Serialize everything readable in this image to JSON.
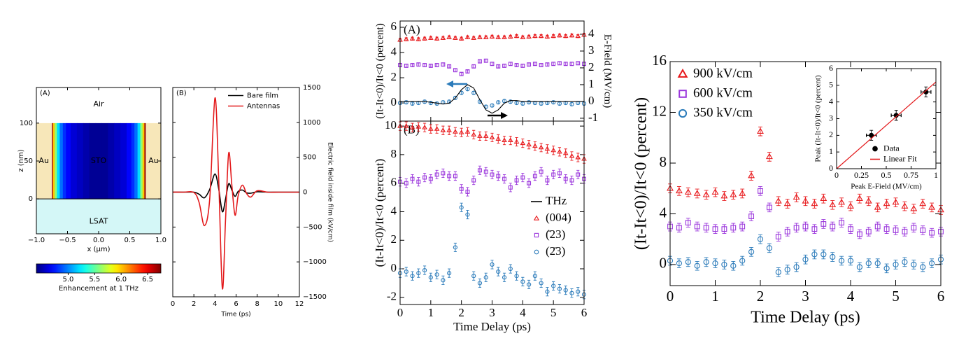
{
  "chart_data": [
    {
      "type": "heatmap",
      "panel_label": "(A)",
      "xlabel": "x (μm)",
      "ylabel": "z (nm)",
      "xlim": [
        -1,
        1
      ],
      "ylim": [
        -46,
        147
      ],
      "xticks": [
        {
          "value": -1,
          "label": "−1.0"
        },
        {
          "value": -0.5,
          "label": "−0.5"
        },
        {
          "value": 0,
          "label": "0.0"
        },
        {
          "value": 0.5,
          "label": "0.5"
        },
        {
          "value": 1,
          "label": "1.0"
        }
      ],
      "yticks": [
        0,
        50,
        100
      ],
      "labels": [
        "Air",
        "Au",
        "STO",
        "Au",
        "LSAT"
      ],
      "film_z": [
        0,
        100
      ],
      "x": [
        -0.75,
        -0.72,
        -0.69,
        -0.65,
        -0.6,
        -0.55,
        -0.5,
        -0.4,
        -0.3,
        -0.2,
        -0.1,
        0,
        0.1,
        0.2,
        0.3,
        0.4,
        0.5,
        0.55,
        0.6,
        0.65,
        0.69,
        0.72,
        0.75
      ],
      "values": [
        6.7,
        6.0,
        5.6,
        5.2,
        4.95,
        4.8,
        4.7,
        4.6,
        4.55,
        4.5,
        4.45,
        4.45,
        4.45,
        4.5,
        4.55,
        4.6,
        4.7,
        4.8,
        4.95,
        5.2,
        5.6,
        6.0,
        6.7
      ],
      "colormap": "jet",
      "clim": [
        4.4,
        6.75
      ],
      "colorbar_ticks": [
        {
          "value": 5,
          "label": "5.0"
        },
        {
          "value": 5.5,
          "label": "5.5"
        },
        {
          "value": 6,
          "label": "6.0"
        },
        {
          "value": 6.5,
          "label": "6.5"
        }
      ],
      "colorbar_label": "Enhancement at 1 THz"
    },
    {
      "type": "line",
      "panel_label": "(B)",
      "xlabel": "Time (ps)",
      "ylabel": "Electric field inside film (kV/cm)",
      "y_axis_side": "right",
      "x": [
        0,
        1,
        2,
        2.5,
        3,
        3.5,
        4,
        4.35,
        4.7,
        5,
        5.3,
        5.6,
        5.9,
        6.2,
        6.6,
        7,
        7.4,
        8,
        9,
        10,
        12
      ],
      "xlim": [
        0,
        12
      ],
      "xticks": [
        0,
        2,
        4,
        6,
        8,
        10,
        12
      ],
      "ylim": [
        -1500,
        1500
      ],
      "yticks": [
        {
          "value": -1500,
          "label": "−1500"
        },
        {
          "value": -1000,
          "label": "−1000"
        },
        {
          "value": -500,
          "label": "−500"
        },
        0,
        500,
        1000,
        1500
      ],
      "legend": "upper right",
      "series": [
        {
          "name": "Bare film",
          "color": "#000000",
          "style": "line",
          "values": [
            0,
            0,
            0,
            -30,
            -80,
            40,
            260,
            50,
            -280,
            -100,
            120,
            30,
            -60,
            10,
            30,
            -10,
            -15,
            5,
            0,
            0,
            0
          ]
        },
        {
          "name": "Antennas",
          "color": "#e31a1c",
          "style": "line",
          "values": [
            0,
            0,
            -5,
            -150,
            -480,
            -100,
            1350,
            200,
            -1380,
            -400,
            560,
            100,
            -330,
            -50,
            100,
            -20,
            -70,
            20,
            0,
            0,
            0
          ]
        }
      ]
    },
    {
      "type": "line",
      "panel_label": "(A)",
      "ylabel": "(It-It<0)/It<0 (percent)",
      "y2label": "E-Field (MV/cm)",
      "x": [
        0,
        0.2,
        0.4,
        0.6,
        0.8,
        1,
        1.2,
        1.4,
        1.6,
        1.8,
        2,
        2.2,
        2.4,
        2.6,
        2.8,
        3,
        3.2,
        3.4,
        3.6,
        3.8,
        4,
        4.2,
        4.4,
        4.6,
        4.8,
        5,
        5.2,
        5.4,
        5.6,
        5.8,
        6
      ],
      "xlim": [
        0,
        6
      ],
      "xticks": [
        0,
        1,
        2,
        3,
        4,
        5,
        6
      ],
      "x_tick_labels": false,
      "ylim": [
        -1.44,
        6.5
      ],
      "yticks": [
        0,
        2,
        4,
        6
      ],
      "y2lim": [
        -1.17,
        4.79
      ],
      "y2ticks": [
        -1,
        0,
        1,
        2,
        3,
        4
      ],
      "series": [
        {
          "color": "#e8191c",
          "style": "markers",
          "marker": "triangle",
          "error": 0.12,
          "values": [
            5.0,
            5.05,
            5.1,
            5.05,
            5.1,
            5.15,
            5.1,
            5.15,
            5.2,
            5.15,
            5.1,
            5.2,
            5.15,
            5.2,
            5.2,
            5.25,
            5.2,
            5.2,
            5.25,
            5.3,
            5.2,
            5.25,
            5.3,
            5.3,
            5.25,
            5.3,
            5.35,
            5.3,
            5.35,
            5.3,
            5.4
          ]
        },
        {
          "color": "#9a35dc",
          "style": "markers",
          "marker": "square",
          "error": 0.12,
          "values": [
            3.0,
            2.95,
            3.0,
            3.05,
            3.0,
            2.95,
            3.0,
            3.05,
            2.9,
            2.6,
            2.3,
            2.5,
            2.9,
            3.3,
            3.35,
            3.1,
            2.9,
            2.95,
            3.1,
            3.0,
            2.95,
            3.05,
            3.1,
            3.0,
            3.05,
            3.1,
            3.15,
            3.1,
            3.1,
            3.15,
            3.1
          ]
        },
        {
          "color": "#2b7bba",
          "style": "markers",
          "marker": "circle",
          "error": 0.12,
          "values": [
            0,
            0.05,
            -0.05,
            0,
            0.1,
            0,
            -0.05,
            0.05,
            0.1,
            0.4,
            0.8,
            1.1,
            0.8,
            0.1,
            -0.3,
            -0.2,
            0.05,
            0.15,
            0.1,
            0,
            -0.05,
            0.05,
            0,
            -0.05,
            0,
            0.05,
            -0.05,
            0,
            -0.1,
            0,
            -0.05
          ]
        },
        {
          "name": "THz",
          "color": "#000000",
          "style": "line",
          "axis": "y2",
          "values": [
            0,
            0,
            0,
            0,
            0,
            -0.05,
            -0.1,
            -0.15,
            -0.1,
            0.2,
            0.7,
            1.0,
            0.8,
            0.1,
            -0.5,
            -0.7,
            -0.5,
            -0.1,
            0.05,
            0.05,
            0,
            0,
            0,
            0,
            0,
            0,
            0,
            0,
            0,
            0,
            0
          ]
        }
      ]
    },
    {
      "type": "line",
      "panel_label": "(B)",
      "xlabel": "Time Delay (ps)",
      "ylabel": "(It-It<0)/It<0 (percent)",
      "x": [
        0,
        0.2,
        0.4,
        0.6,
        0.8,
        1,
        1.2,
        1.4,
        1.6,
        1.8,
        2,
        2.2,
        2.4,
        2.6,
        2.8,
        3,
        3.2,
        3.4,
        3.6,
        3.8,
        4,
        4.2,
        4.4,
        4.6,
        4.8,
        5,
        5.2,
        5.4,
        5.6,
        5.8,
        6
      ],
      "xlim": [
        0,
        6
      ],
      "xticks": [
        0,
        1,
        2,
        3,
        4,
        5,
        6
      ],
      "ylim": [
        -2.5,
        10.35
      ],
      "yticks": [
        -2,
        0,
        2,
        4,
        6,
        8,
        10
      ],
      "legend": "center right",
      "series": [
        {
          "name": "(004)",
          "color": "#e8191c",
          "style": "markers",
          "marker": "triangle",
          "error": 0.3,
          "values": [
            10.0,
            10.0,
            9.9,
            9.95,
            9.9,
            9.8,
            9.8,
            9.7,
            9.7,
            9.6,
            9.55,
            9.6,
            9.4,
            9.3,
            9.3,
            9.2,
            9.1,
            9.0,
            9.0,
            8.9,
            8.8,
            8.7,
            8.6,
            8.5,
            8.4,
            8.3,
            8.2,
            8.1,
            7.9,
            7.8,
            7.7
          ]
        },
        {
          "name": "(̄23)",
          "color": "#9a35dc",
          "style": "markers",
          "marker": "square",
          "error": 0.3,
          "values": [
            6.1,
            6.0,
            6.3,
            6.1,
            6.4,
            6.3,
            6.6,
            6.7,
            6.5,
            6.5,
            5.6,
            5.4,
            6.2,
            6.9,
            6.8,
            6.6,
            6.5,
            6.3,
            5.7,
            6.2,
            6.4,
            6.0,
            6.5,
            6.8,
            6.2,
            6.6,
            6.7,
            6.3,
            6.2,
            6.6,
            6.3
          ]
        },
        {
          "name": "(2̄3)",
          "color": "#2b7bba",
          "style": "markers",
          "marker": "circle",
          "error": 0.3,
          "values": [
            -0.3,
            -0.2,
            -0.5,
            -0.3,
            -0.1,
            -0.6,
            -0.4,
            -0.8,
            -0.3,
            1.5,
            4.3,
            3.8,
            -0.5,
            -1.0,
            -0.6,
            0.3,
            -0.2,
            -0.6,
            0.0,
            -0.5,
            -0.9,
            -1.1,
            -0.5,
            -1.0,
            -1.6,
            -1.2,
            -1.4,
            -1.5,
            -1.7,
            -1.6,
            -1.8
          ]
        }
      ]
    },
    {
      "type": "line",
      "xlabel": "Time Delay (ps)",
      "ylabel": "(It-It<0)/It<0 (percent)",
      "x": [
        0,
        0.2,
        0.4,
        0.6,
        0.8,
        1,
        1.2,
        1.4,
        1.6,
        1.8,
        2,
        2.2,
        2.4,
        2.6,
        2.8,
        3,
        3.2,
        3.4,
        3.6,
        3.8,
        4,
        4.2,
        4.4,
        4.6,
        4.8,
        5,
        5.2,
        5.4,
        5.6,
        5.8,
        6
      ],
      "xlim": [
        0,
        6
      ],
      "xticks": [
        0,
        1,
        2,
        3,
        4,
        5,
        6
      ],
      "ylim": [
        -1.66,
        16
      ],
      "yticks": [
        0,
        4,
        8,
        12,
        16
      ],
      "legend": "upper left",
      "series": [
        {
          "name": "900 kV/cm",
          "color": "#e8191c",
          "style": "markers",
          "marker": "triangle",
          "error": 0.35,
          "values": [
            6.0,
            5.8,
            5.7,
            5.6,
            5.5,
            5.7,
            5.4,
            5.5,
            5.6,
            7.0,
            10.5,
            8.5,
            5.0,
            4.8,
            5.3,
            5.0,
            4.8,
            5.2,
            4.7,
            4.9,
            4.6,
            5.2,
            5.0,
            4.5,
            4.8,
            4.9,
            4.6,
            4.4,
            4.8,
            4.5,
            4.3
          ]
        },
        {
          "name": "600 kV/cm",
          "color": "#9a35dc",
          "style": "markers",
          "marker": "square",
          "error": 0.35,
          "values": [
            3.0,
            2.9,
            3.3,
            3.0,
            2.9,
            2.8,
            2.8,
            2.9,
            3.0,
            3.8,
            5.8,
            4.5,
            2.2,
            2.6,
            2.9,
            3.0,
            2.8,
            3.2,
            3.0,
            3.3,
            2.8,
            2.4,
            2.6,
            3.0,
            2.8,
            2.7,
            2.6,
            2.9,
            2.7,
            2.5,
            2.6
          ]
        },
        {
          "name": "350 kV/cm",
          "color": "#2b7bba",
          "style": "markers",
          "marker": "circle",
          "error": 0.35,
          "values": [
            0.3,
            0.1,
            0.2,
            -0.1,
            0.2,
            0.1,
            0.0,
            -0.1,
            0.3,
            1.0,
            2.0,
            1.3,
            -0.6,
            -0.4,
            -0.2,
            0.4,
            0.8,
            0.8,
            0.6,
            0.3,
            0.3,
            -0.2,
            0.1,
            0.1,
            -0.3,
            0.0,
            0.2,
            0.0,
            -0.2,
            0.1,
            0.4
          ]
        }
      ]
    },
    {
      "type": "scatter",
      "xlabel": "Peak E-Field (MV/cm)",
      "ylabel": "Peak (It-It<0)/It<0 (percent)",
      "xlim": [
        0,
        1
      ],
      "xticks": [
        0,
        0.25,
        0.5,
        0.75,
        1
      ],
      "ylim": [
        0,
        6
      ],
      "yticks": [
        0,
        1,
        2,
        3,
        4,
        5,
        6
      ],
      "legend": "lower right",
      "series": [
        {
          "name": "Data",
          "color": "#000000",
          "style": "markers",
          "marker": "circle",
          "filled": true,
          "x": [
            0.35,
            0.6,
            0.9
          ],
          "values": [
            2.0,
            3.2,
            4.6
          ],
          "error": 0.3,
          "xerror": 0.05
        },
        {
          "name": "Linear Fit",
          "color": "#e31a1c",
          "style": "line",
          "x": [
            0,
            1
          ],
          "values": [
            0,
            5.2
          ]
        }
      ]
    }
  ]
}
